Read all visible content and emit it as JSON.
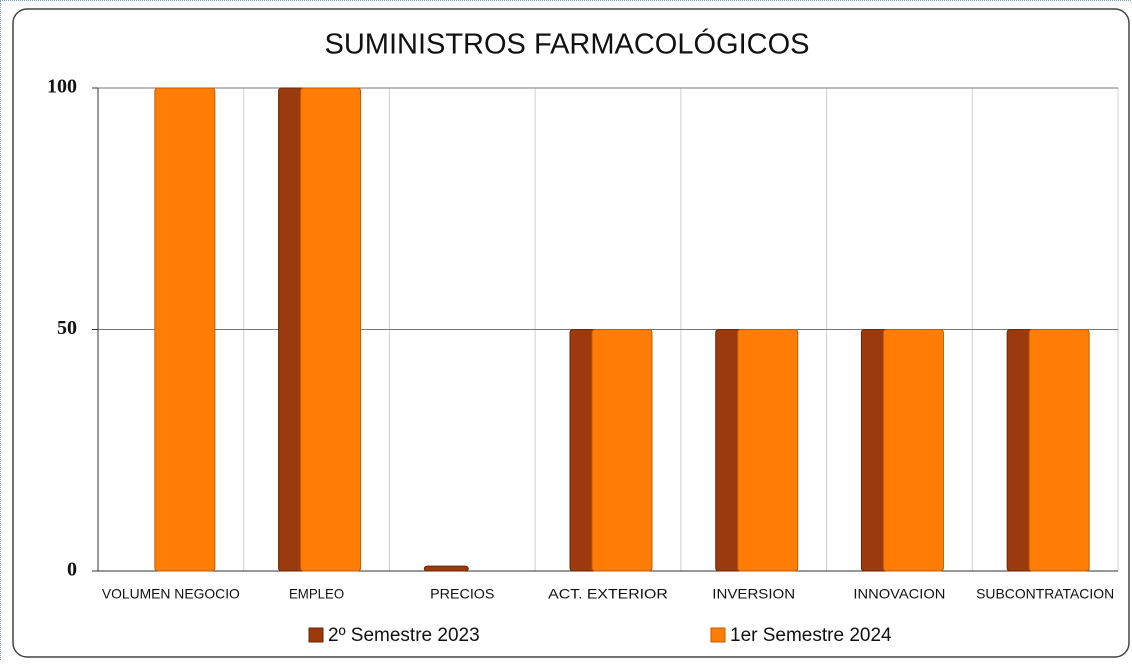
{
  "chart_data": {
    "type": "bar",
    "title": "SUMINISTROS FARMACOLÓGICOS",
    "categories": [
      "VOLUMEN NEGOCIO",
      "EMPLEO",
      "PRECIOS",
      "ACT. EXTERIOR",
      "INVERSION",
      "INNOVACION",
      "SUBCONTRATACION"
    ],
    "series": [
      {
        "name": "2º Semestre 2023",
        "color": "#9a3a0e",
        "values": [
          0,
          100,
          1,
          50,
          50,
          50,
          50
        ]
      },
      {
        "name": "1er Semestre 2024",
        "color": "#ff7c05",
        "values": [
          100,
          100,
          0,
          50,
          50,
          50,
          50
        ]
      }
    ],
    "ylim": [
      0,
      100
    ],
    "yticks": [
      0,
      50,
      100
    ],
    "grid": true,
    "legend": "bottom"
  }
}
